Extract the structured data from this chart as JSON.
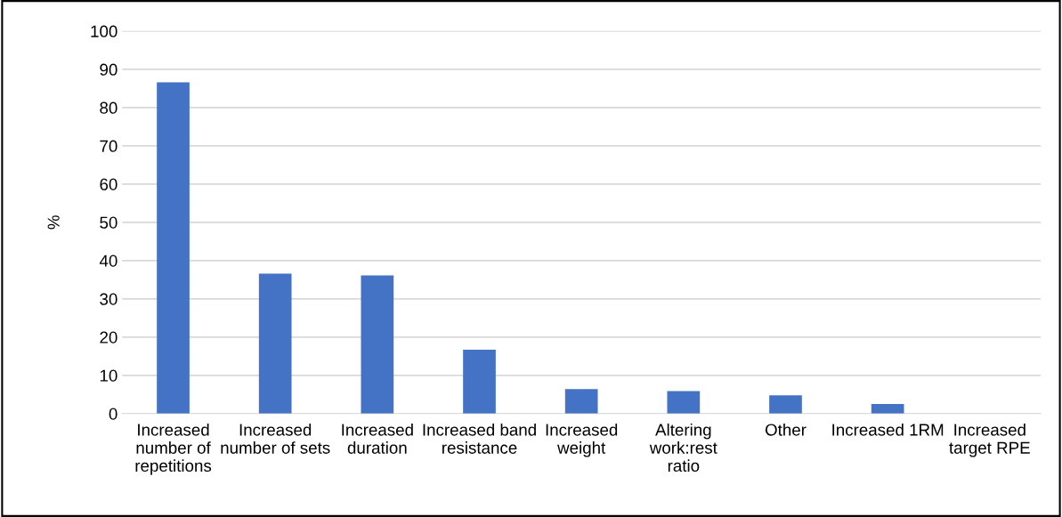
{
  "chart_data": {
    "type": "bar",
    "ylabel": "%",
    "categories": [
      "Increased number of repetitions",
      "Increased number of sets",
      "Increased duration",
      "Increased band resistance",
      "Increased weight",
      "Altering work:rest ratio",
      "Other",
      "Increased 1RM",
      "Increased target RPE"
    ],
    "values": [
      86.6,
      36.6,
      36.1,
      16.7,
      6.4,
      5.9,
      4.8,
      2.5,
      0
    ],
    "color": "#4472c4",
    "ylim": [
      0,
      100
    ],
    "yticks": [
      0,
      10,
      20,
      30,
      40,
      50,
      60,
      70,
      80,
      90,
      100
    ],
    "grid": "y"
  }
}
